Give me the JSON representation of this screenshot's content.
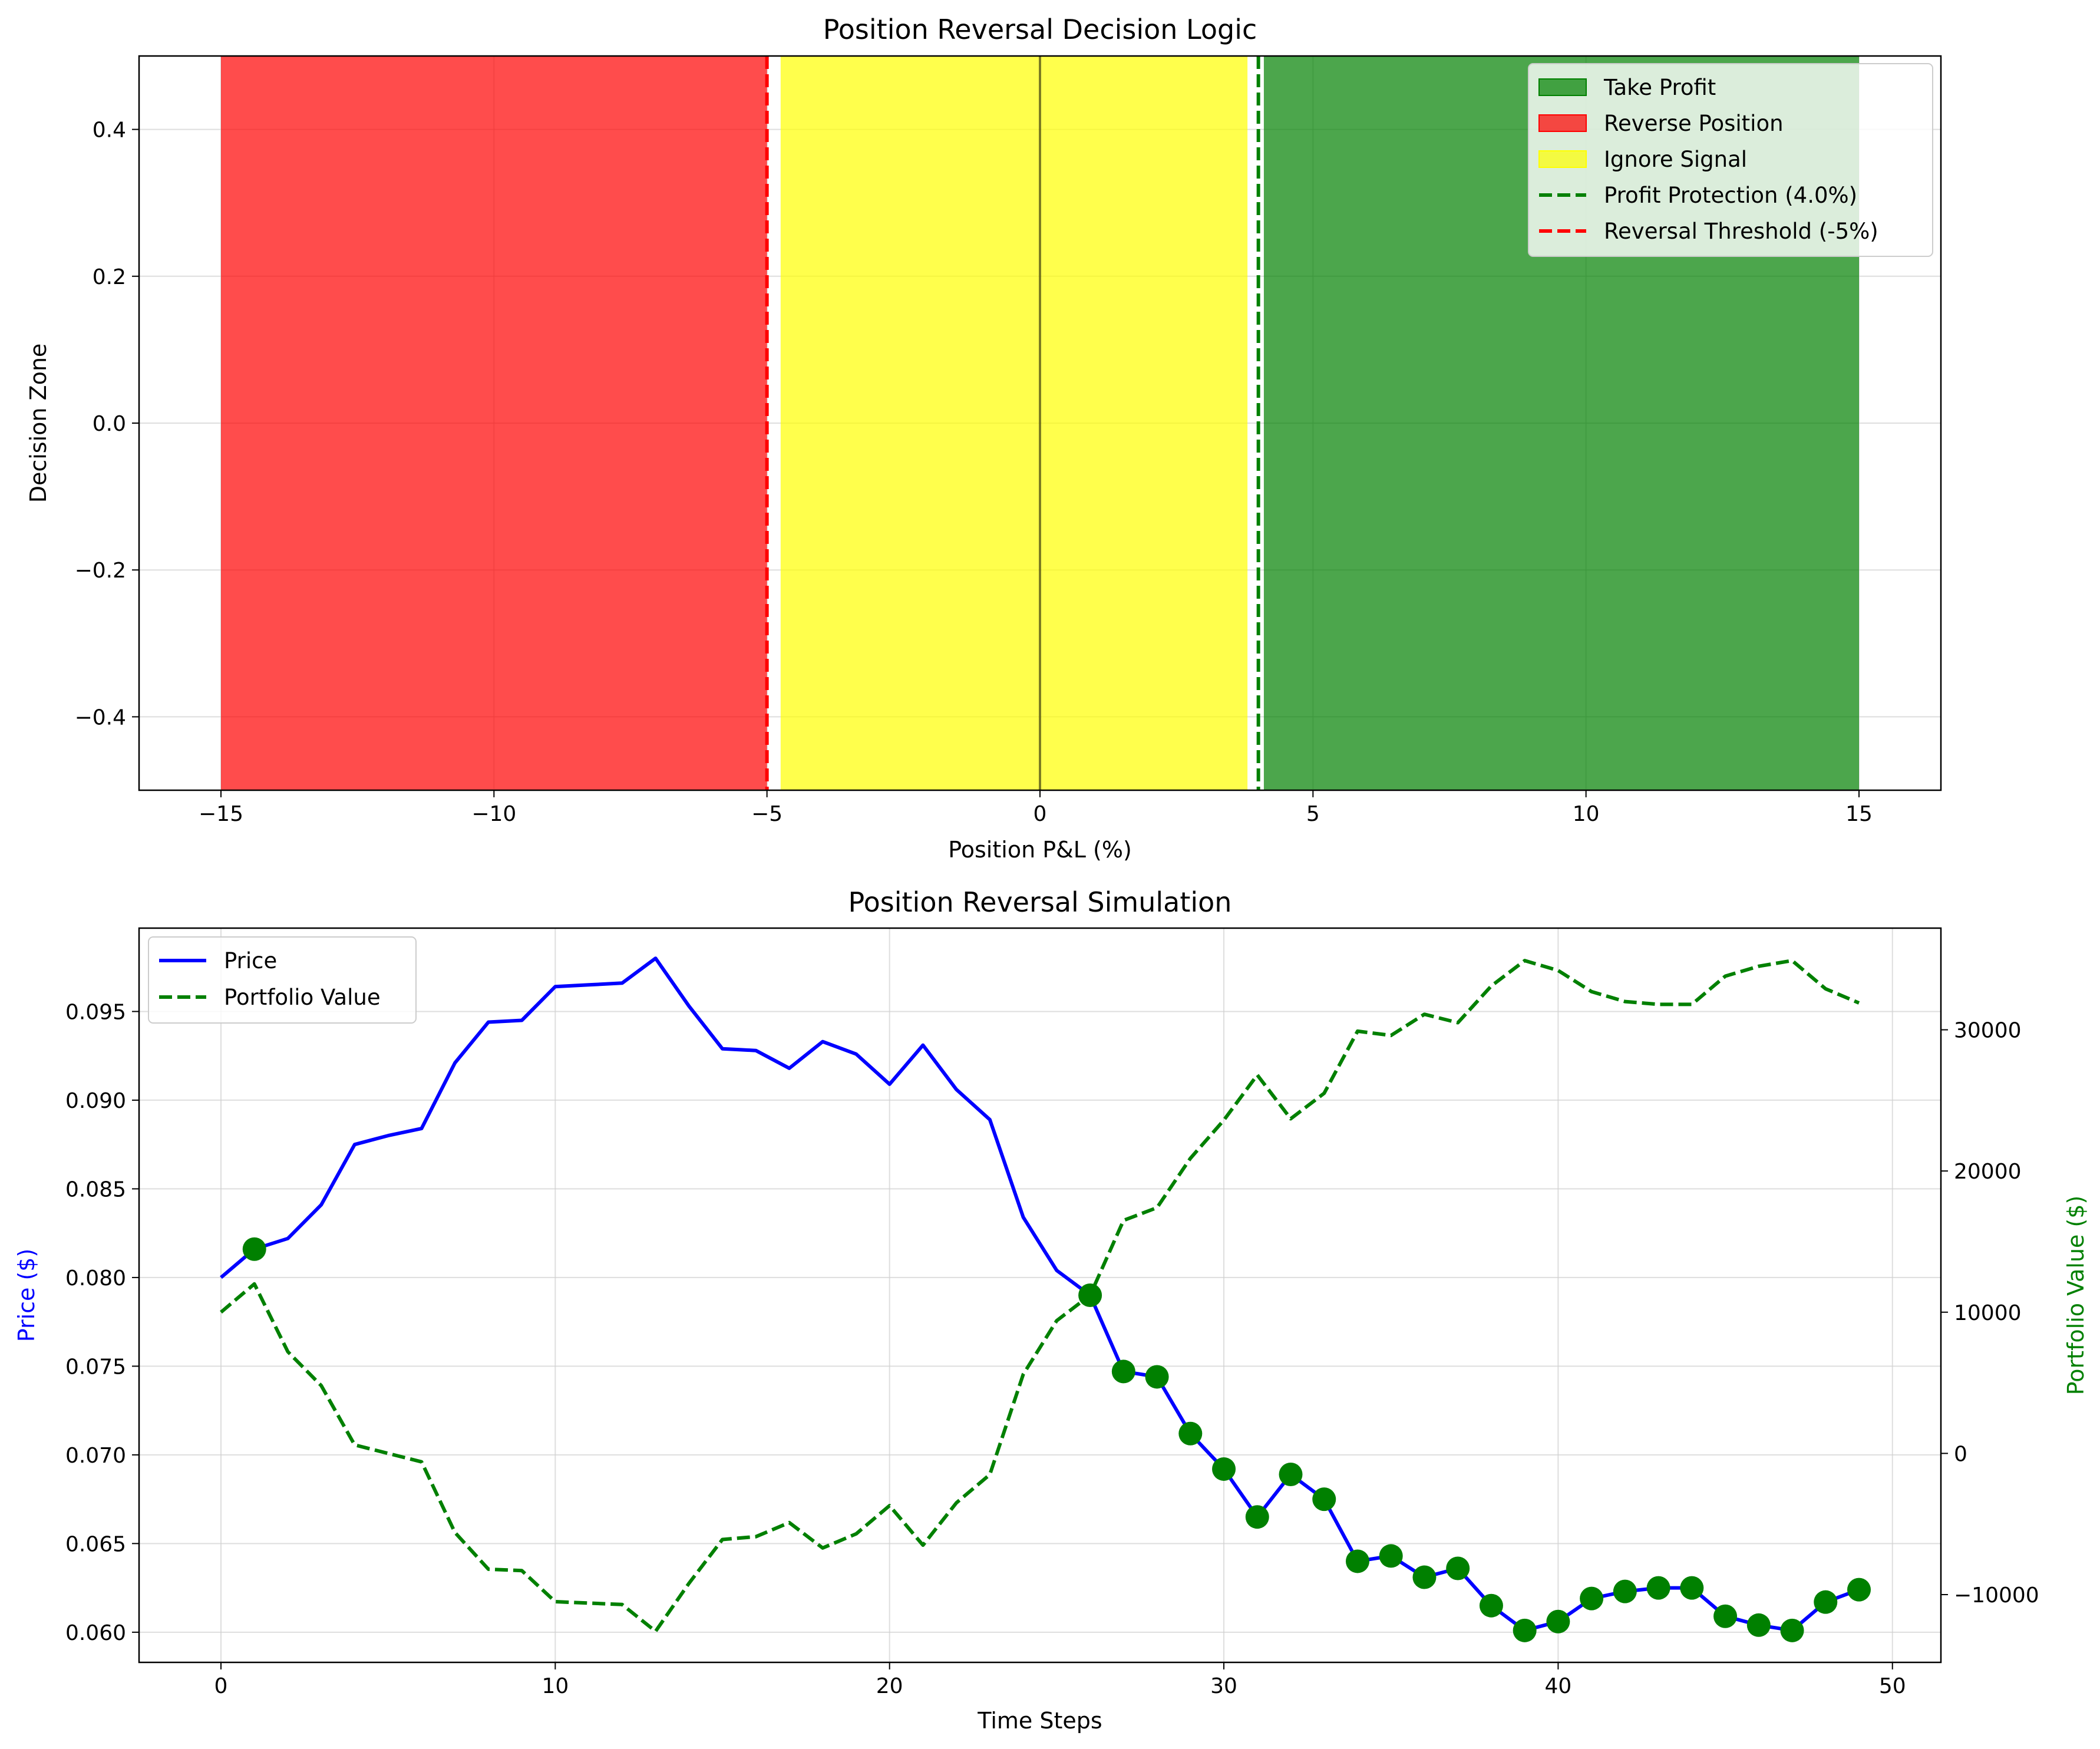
{
  "chart_data": [
    {
      "type": "area",
      "title": "Position Reversal Decision Logic",
      "xlabel": "Position P&L (%)",
      "ylabel": "Decision Zone",
      "xlim": [
        -16.5,
        16.5
      ],
      "ylim": [
        -0.5,
        0.5
      ],
      "xticks": [
        -15,
        -10,
        -5,
        0,
        5,
        10,
        15
      ],
      "yticks": [
        -0.4,
        -0.2,
        0.0,
        0.2,
        0.4
      ],
      "xtick_labels": [
        "−15",
        "−10",
        "−5",
        "0",
        "5",
        "10",
        "15"
      ],
      "ytick_labels": [
        "−0.4",
        "−0.2",
        "0.0",
        "0.2",
        "0.4"
      ],
      "grid": true,
      "legend_position": "top-right",
      "zones": [
        {
          "name": "Take Profit",
          "x_from": 4.1,
          "x_to": 15,
          "color": "#008000"
        },
        {
          "name": "Reverse Position",
          "x_from": -15,
          "x_to": -5,
          "color": "#ff0000"
        },
        {
          "name": "Ignore Signal",
          "x_from": -4.75,
          "x_to": 3.8,
          "color": "#ffff00"
        }
      ],
      "lines": [
        {
          "name": "Profit Protection (4.0%)",
          "x": 4.0,
          "color": "#008000",
          "style": "dashed"
        },
        {
          "name": "Reversal Threshold (-5%)",
          "x": -5.0,
          "color": "#ff0000",
          "style": "dashed"
        },
        {
          "name": "",
          "x": 0.0,
          "color": "#000000",
          "style": "solid"
        }
      ],
      "legend": [
        "Take Profit",
        "Reverse Position",
        "Ignore Signal",
        "Profit Protection (4.0%)",
        "Reversal Threshold (-5%)"
      ]
    },
    {
      "type": "line",
      "title": "Position Reversal Simulation",
      "xlabel": "Time Steps",
      "ylabel": "Price ($)",
      "ylabel_right": "Portfolio Value ($)",
      "xlim": [
        -2.45,
        51.45
      ],
      "ylim": [
        0.0583,
        0.0997
      ],
      "ylim_right": [
        -14800,
        37200
      ],
      "xticks": [
        0,
        10,
        20,
        30,
        40,
        50
      ],
      "yticks": [
        0.06,
        0.065,
        0.07,
        0.075,
        0.08,
        0.085,
        0.09,
        0.095
      ],
      "yticks_right": [
        -10000,
        0,
        10000,
        20000,
        30000
      ],
      "xtick_labels": [
        "0",
        "10",
        "20",
        "30",
        "40",
        "50"
      ],
      "ytick_labels": [
        "0.060",
        "0.065",
        "0.070",
        "0.075",
        "0.080",
        "0.085",
        "0.090",
        "0.095"
      ],
      "ytick_labels_right": [
        "−10000",
        "0",
        "10000",
        "20000",
        "30000"
      ],
      "grid": true,
      "legend_position": "top-left",
      "x": [
        0,
        1,
        2,
        3,
        4,
        5,
        6,
        7,
        8,
        9,
        10,
        11,
        12,
        13,
        14,
        15,
        16,
        17,
        18,
        19,
        20,
        21,
        22,
        23,
        24,
        25,
        26,
        27,
        28,
        29,
        30,
        31,
        32,
        33,
        34,
        35,
        36,
        37,
        38,
        39,
        40,
        41,
        42,
        43,
        44,
        45,
        46,
        47,
        48,
        49
      ],
      "series": [
        {
          "name": "Price",
          "axis": "left",
          "color": "#0000ff",
          "style": "solid",
          "values": [
            0.08,
            0.0816,
            0.0822,
            0.0841,
            0.0875,
            0.088,
            0.0884,
            0.0921,
            0.0944,
            0.0945,
            0.0964,
            0.0965,
            0.0966,
            0.098,
            0.0953,
            0.0929,
            0.0928,
            0.0918,
            0.0933,
            0.0926,
            0.0909,
            0.0931,
            0.0906,
            0.0889,
            0.0834,
            0.0804,
            0.079,
            0.0747,
            0.0744,
            0.0712,
            0.0692,
            0.0665,
            0.0689,
            0.0675,
            0.064,
            0.0643,
            0.0631,
            0.0636,
            0.0615,
            0.0601,
            0.0606,
            0.0619,
            0.0623,
            0.0625,
            0.0625,
            0.0609,
            0.0604,
            0.0601,
            0.0617,
            0.0624
          ]
        },
        {
          "name": "Portfolio Value",
          "axis": "right",
          "color": "#008000",
          "style": "dashed",
          "values": [
            10000,
            12000,
            7200,
            4800,
            600,
            0,
            -600,
            -5600,
            -8200,
            -8300,
            -10500,
            -10600,
            -10700,
            -12600,
            -9200,
            -6100,
            -5900,
            -4900,
            -6700,
            -5700,
            -3700,
            -6500,
            -3500,
            -1500,
            5600,
            9400,
            11200,
            16500,
            17400,
            20900,
            23600,
            26800,
            23700,
            25500,
            29900,
            29600,
            31100,
            30500,
            33100,
            34900,
            34200,
            32700,
            32000,
            31800,
            31800,
            33800,
            34500,
            34900,
            32900,
            31900
          ]
        }
      ],
      "markers": {
        "color": "#008000",
        "x": [
          1,
          26,
          27,
          28,
          29,
          30,
          31,
          32,
          33,
          34,
          35,
          36,
          37,
          38,
          39,
          40,
          41,
          42,
          43,
          44,
          45,
          46,
          47,
          48,
          49
        ]
      }
    }
  ]
}
